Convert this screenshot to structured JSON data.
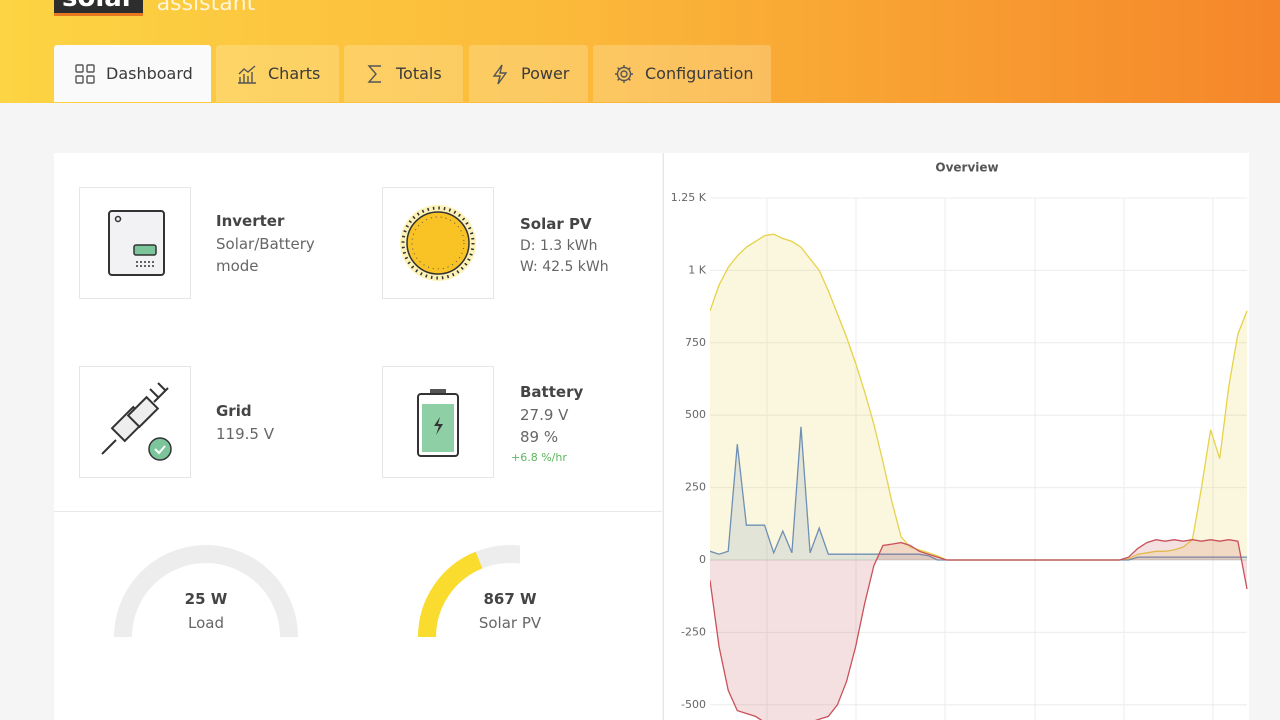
{
  "brand": {
    "name": "solar",
    "suffix": "assistant"
  },
  "tabs": [
    "Dashboard",
    "Charts",
    "Totals",
    "Power",
    "Configuration"
  ],
  "cards": [
    {
      "title": "Inverter",
      "lines": [
        "Solar/Battery mode"
      ]
    },
    {
      "title": "Solar PV",
      "lines": [
        "D: 1.3 kWh",
        "W: 42.5 kWh"
      ]
    },
    {
      "title": "Grid",
      "lines": [
        "119.5 V"
      ]
    },
    {
      "title": "Battery",
      "lines": [
        "27.9 V",
        "89 %"
      ],
      "note": "+6.8 %/hr"
    }
  ],
  "gauges": [
    {
      "value": "25 W",
      "label": "Load"
    },
    {
      "value": "867 W",
      "label": "Solar PV"
    }
  ],
  "chart_data": {
    "type": "line",
    "title": "Overview",
    "fill": true,
    "grid": true,
    "ylim": [
      -560,
      1250
    ],
    "yticks": [
      {
        "value": 1250,
        "label": "1.25 K"
      },
      {
        "value": 1000,
        "label": "1 K"
      },
      750,
      500,
      250,
      0,
      -250,
      -500
    ],
    "series": [
      {
        "color": "#e6d24a",
        "values": [
          860,
          950,
          1010,
          1050,
          1080,
          1100,
          1120,
          1125,
          1110,
          1100,
          1080,
          1040,
          1000,
          930,
          850,
          770,
          680,
          580,
          470,
          340,
          200,
          80,
          45,
          35,
          25,
          15,
          0,
          0,
          0,
          0,
          0,
          0,
          0,
          0,
          0,
          0,
          0,
          0,
          0,
          0,
          0,
          0,
          0,
          0,
          0,
          0,
          5,
          20,
          25,
          30,
          30,
          35,
          45,
          70,
          250,
          450,
          350,
          600,
          780,
          860
        ]
      },
      {
        "color": "#6f8fb5",
        "values": [
          30,
          20,
          30,
          400,
          120,
          120,
          120,
          25,
          100,
          25,
          460,
          25,
          110,
          20,
          20,
          20,
          20,
          20,
          20,
          20,
          20,
          20,
          20,
          20,
          15,
          0,
          0,
          0,
          0,
          0,
          0,
          0,
          0,
          0,
          0,
          0,
          0,
          0,
          0,
          0,
          0,
          0,
          0,
          0,
          0,
          0,
          0,
          10,
          10,
          10,
          10,
          10,
          10,
          10,
          10,
          10,
          10,
          10,
          10,
          10
        ]
      },
      {
        "color": "#c9515a",
        "values": [
          -70,
          -300,
          -450,
          -520,
          -530,
          -540,
          -560,
          -560,
          -560,
          -560,
          -560,
          -560,
          -550,
          -540,
          -500,
          -420,
          -300,
          -150,
          -20,
          50,
          55,
          60,
          50,
          30,
          20,
          10,
          0,
          0,
          0,
          0,
          0,
          0,
          0,
          0,
          0,
          0,
          0,
          0,
          0,
          0,
          0,
          0,
          0,
          0,
          0,
          0,
          10,
          40,
          60,
          70,
          65,
          70,
          65,
          70,
          65,
          70,
          65,
          70,
          65,
          -100
        ]
      }
    ]
  }
}
